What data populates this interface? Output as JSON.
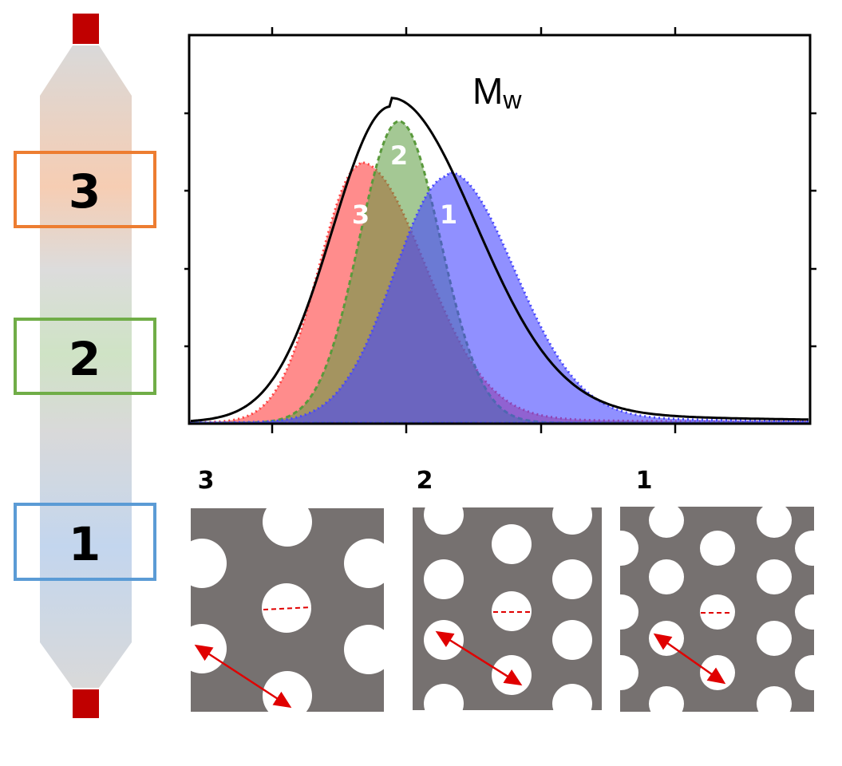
{
  "column": {
    "zones": [
      {
        "label": "3",
        "color": "#ED7D31"
      },
      {
        "label": "2",
        "color": "#70AD47"
      },
      {
        "label": "1",
        "color": "#5B9BD5"
      }
    ],
    "end_cap_color": "#C00000",
    "body_color": "#D9D9D9"
  },
  "chart": {
    "title_main": "M",
    "title_sub": "w",
    "peak_labels": {
      "zone3": "3",
      "zone2": "2",
      "zone1": "1"
    },
    "series_colors": {
      "total": "#000000",
      "zone3": "#FF4040",
      "zone2": "#5A9A3C",
      "zone1": "#4646FF"
    }
  },
  "panels": [
    {
      "label": "3"
    },
    {
      "label": "2"
    },
    {
      "label": "1"
    }
  ],
  "panel_color": "#767170",
  "arrow_color": "#E00000"
}
